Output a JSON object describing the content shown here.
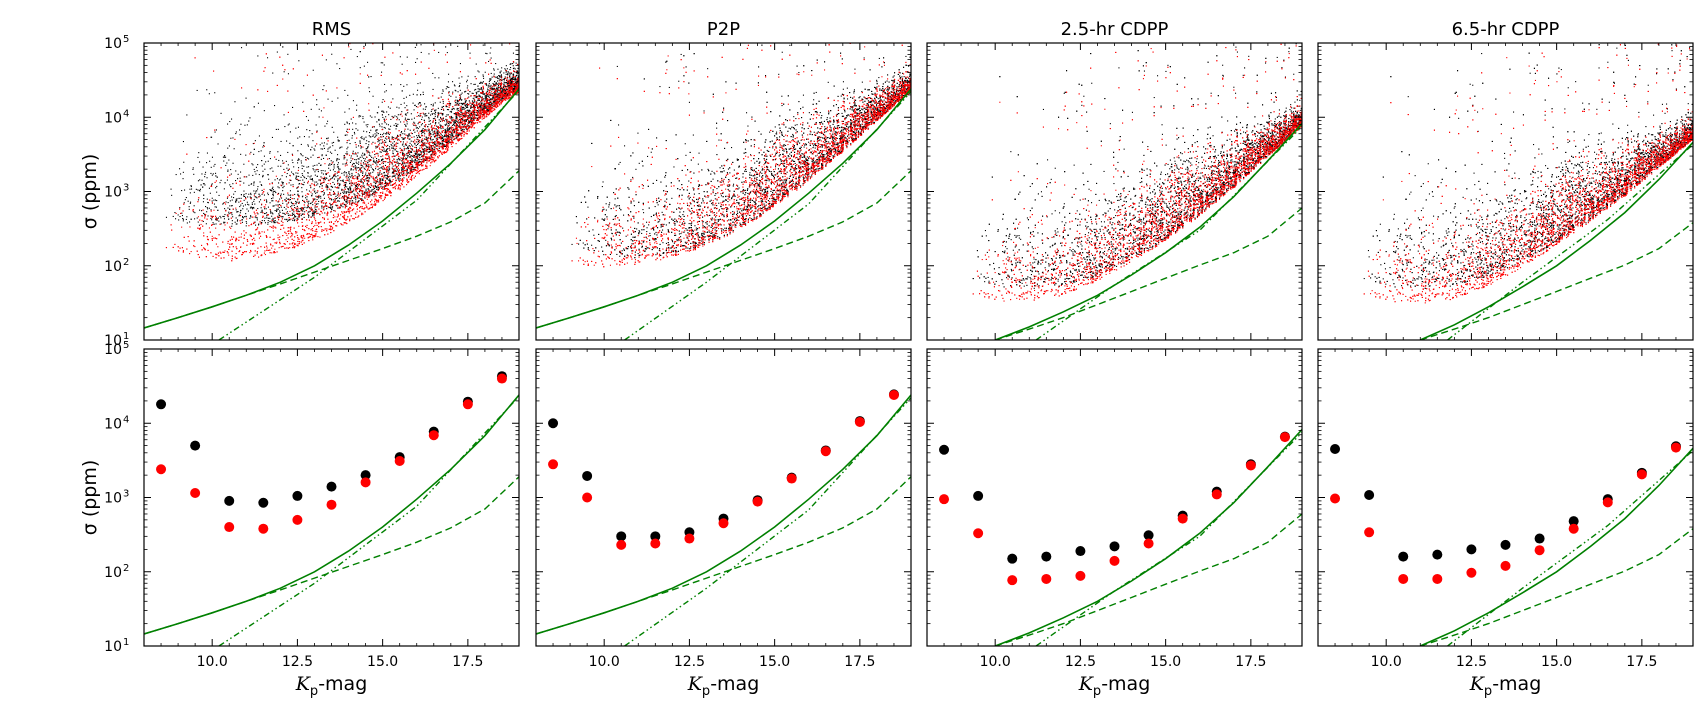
{
  "chart_data": {
    "type": "scatter",
    "layout": "2 rows x 4 columns, shared x axis",
    "panel_titles": [
      "RMS",
      "P2P",
      "2.5-hr CDPP",
      "6.5-hr CDPP"
    ],
    "xlabel": "Kp-mag",
    "xlabel_main": "K",
    "xlabel_sub": "p",
    "xlabel_suffix": "-mag",
    "ylabel": "σ (ppm)",
    "yscale": "log",
    "xlim": [
      8.0,
      19.0
    ],
    "ylim": [
      10,
      100000
    ],
    "x_ticks": [
      "10.0",
      "12.5",
      "15.0",
      "17.5"
    ],
    "x_tick_values": [
      10.0,
      12.5,
      15.0,
      17.5
    ],
    "y_tick_base": "10",
    "y_tick_exponents": [
      "1",
      "2",
      "3",
      "4",
      "5"
    ],
    "y_tick_values": [
      10,
      100,
      1000,
      10000,
      100000
    ],
    "colors": {
      "black_series": "#000000",
      "red_series": "#ff0000",
      "noise_model": "#008000"
    },
    "noise_model": [
      {
        "solid_total": [
          [
            8.0,
            14.5
          ],
          [
            9.0,
            20
          ],
          [
            10.0,
            28
          ],
          [
            11.0,
            40
          ],
          [
            12.0,
            60
          ],
          [
            13.0,
            100
          ],
          [
            14.0,
            190
          ],
          [
            15.0,
            400
          ],
          [
            16.0,
            950
          ],
          [
            17.0,
            2400
          ],
          [
            18.0,
            6800
          ],
          [
            19.0,
            24000
          ]
        ],
        "dashed": [
          [
            8.0,
            14.5
          ],
          [
            9.0,
            20
          ],
          [
            10.0,
            28
          ],
          [
            11.0,
            40
          ],
          [
            12.0,
            57
          ],
          [
            13.0,
            82
          ],
          [
            14.0,
            118
          ],
          [
            15.0,
            170
          ],
          [
            16.0,
            250
          ],
          [
            17.0,
            390
          ],
          [
            18.0,
            700
          ],
          [
            19.0,
            1900
          ]
        ],
        "dashdot": [
          [
            10.2,
            10
          ],
          [
            13.0,
            70
          ],
          [
            16.0,
            760
          ],
          [
            19.0,
            23000
          ]
        ]
      },
      {
        "solid_total": [
          [
            8.0,
            14.5
          ],
          [
            9.0,
            20
          ],
          [
            10.0,
            28
          ],
          [
            11.0,
            40
          ],
          [
            12.0,
            60
          ],
          [
            13.0,
            100
          ],
          [
            14.0,
            190
          ],
          [
            15.0,
            400
          ],
          [
            16.0,
            950
          ],
          [
            17.0,
            2400
          ],
          [
            18.0,
            6800
          ],
          [
            19.0,
            24000
          ]
        ],
        "dashed": [
          [
            8.0,
            14.5
          ],
          [
            9.0,
            20
          ],
          [
            10.0,
            28
          ],
          [
            11.0,
            40
          ],
          [
            12.0,
            57
          ],
          [
            13.0,
            82
          ],
          [
            14.0,
            118
          ],
          [
            15.0,
            170
          ],
          [
            16.0,
            250
          ],
          [
            17.0,
            390
          ],
          [
            18.0,
            700
          ],
          [
            19.0,
            1900
          ]
        ],
        "dashdot": [
          [
            10.6,
            10
          ],
          [
            13.0,
            60
          ],
          [
            16.0,
            680
          ],
          [
            19.0,
            22000
          ]
        ]
      },
      {
        "solid_total": [
          [
            10.0,
            10
          ],
          [
            11.0,
            15
          ],
          [
            12.0,
            24
          ],
          [
            13.0,
            40
          ],
          [
            14.0,
            75
          ],
          [
            15.0,
            150
          ],
          [
            16.0,
            330
          ],
          [
            17.0,
            850
          ],
          [
            18.0,
            2600
          ],
          [
            19.0,
            8200
          ]
        ],
        "dashed": [
          [
            10.0,
            10
          ],
          [
            11.0,
            14
          ],
          [
            12.0,
            20
          ],
          [
            13.0,
            30
          ],
          [
            14.0,
            45
          ],
          [
            15.0,
            68
          ],
          [
            16.0,
            102
          ],
          [
            17.0,
            150
          ],
          [
            18.0,
            250
          ],
          [
            19.0,
            600
          ]
        ],
        "dashdot": [
          [
            11.2,
            10
          ],
          [
            13.5,
            55
          ],
          [
            16.0,
            300
          ],
          [
            19.0,
            7500
          ]
        ]
      },
      {
        "solid_total": [
          [
            11.0,
            10
          ],
          [
            12.0,
            16
          ],
          [
            13.0,
            28
          ],
          [
            14.0,
            52
          ],
          [
            15.0,
            100
          ],
          [
            16.0,
            220
          ],
          [
            17.0,
            520
          ],
          [
            18.0,
            1450
          ],
          [
            19.0,
            4600
          ]
        ],
        "dashed": [
          [
            11.0,
            10
          ],
          [
            12.0,
            14
          ],
          [
            13.0,
            20
          ],
          [
            14.0,
            30
          ],
          [
            15.0,
            45
          ],
          [
            16.0,
            68
          ],
          [
            17.0,
            102
          ],
          [
            18.0,
            170
          ],
          [
            19.0,
            380
          ]
        ],
        "dashdot": [
          [
            11.8,
            10
          ],
          [
            14.0,
            60
          ],
          [
            16.5,
            420
          ],
          [
            19.0,
            4300
          ]
        ]
      }
    ],
    "scatter_panels_description": [
      {
        "black_lower_envelope": [
          [
            8.5,
            500
          ],
          [
            9.5,
            400
          ],
          [
            10.5,
            380
          ],
          [
            11.5,
            400
          ],
          [
            12.5,
            450
          ],
          [
            13.5,
            600
          ],
          [
            14.5,
            900
          ],
          [
            15.5,
            1600
          ],
          [
            16.5,
            3500
          ],
          [
            17.5,
            8000
          ],
          [
            18.5,
            20000
          ],
          [
            19.0,
            28000
          ]
        ],
        "red_lower_envelope": [
          [
            8.5,
            200
          ],
          [
            9.5,
            150
          ],
          [
            10.5,
            130
          ],
          [
            11.5,
            150
          ],
          [
            12.5,
            200
          ],
          [
            13.5,
            320
          ],
          [
            14.5,
            600
          ],
          [
            15.5,
            1200
          ],
          [
            16.5,
            2800
          ],
          [
            17.5,
            7000
          ],
          [
            18.5,
            18000
          ],
          [
            19.0,
            25000
          ]
        ],
        "x_start": 8.6
      },
      {
        "black_lower_envelope": [
          [
            8.5,
            250
          ],
          [
            9.5,
            180
          ],
          [
            10.5,
            140
          ],
          [
            11.5,
            150
          ],
          [
            12.5,
            180
          ],
          [
            13.5,
            280
          ],
          [
            14.5,
            520
          ],
          [
            15.5,
            1100
          ],
          [
            16.5,
            2600
          ],
          [
            17.5,
            6500
          ],
          [
            18.5,
            17000
          ],
          [
            19.0,
            26000
          ]
        ],
        "red_lower_envelope": [
          [
            8.5,
            150
          ],
          [
            9.5,
            110
          ],
          [
            10.5,
            110
          ],
          [
            11.5,
            130
          ],
          [
            12.5,
            170
          ],
          [
            13.5,
            270
          ],
          [
            14.5,
            500
          ],
          [
            15.5,
            1050
          ],
          [
            16.5,
            2500
          ],
          [
            17.5,
            6300
          ],
          [
            18.5,
            16500
          ],
          [
            19.0,
            25000
          ]
        ],
        "x_start": 9.0
      },
      {
        "black_lower_envelope": [
          [
            9.0,
            80
          ],
          [
            10.0,
            60
          ],
          [
            11.0,
            55
          ],
          [
            12.0,
            60
          ],
          [
            13.0,
            80
          ],
          [
            14.0,
            140
          ],
          [
            15.0,
            260
          ],
          [
            16.0,
            560
          ],
          [
            17.0,
            1350
          ],
          [
            18.0,
            3500
          ],
          [
            19.0,
            9000
          ]
        ],
        "red_lower_envelope": [
          [
            9.0,
            50
          ],
          [
            10.0,
            38
          ],
          [
            11.0,
            38
          ],
          [
            12.0,
            45
          ],
          [
            13.0,
            70
          ],
          [
            14.0,
            130
          ],
          [
            15.0,
            250
          ],
          [
            16.0,
            540
          ],
          [
            17.0,
            1300
          ],
          [
            18.0,
            3400
          ],
          [
            19.0,
            8800
          ]
        ],
        "x_start": 9.3
      },
      {
        "black_lower_envelope": [
          [
            9.0,
            80
          ],
          [
            10.0,
            60
          ],
          [
            11.0,
            55
          ],
          [
            12.0,
            60
          ],
          [
            13.0,
            80
          ],
          [
            14.0,
            130
          ],
          [
            15.0,
            240
          ],
          [
            16.0,
            480
          ],
          [
            17.0,
            1050
          ],
          [
            18.0,
            2500
          ],
          [
            19.0,
            6000
          ]
        ],
        "red_lower_envelope": [
          [
            9.0,
            50
          ],
          [
            10.0,
            38
          ],
          [
            11.0,
            35
          ],
          [
            12.0,
            40
          ],
          [
            13.0,
            60
          ],
          [
            14.0,
            110
          ],
          [
            15.0,
            220
          ],
          [
            16.0,
            460
          ],
          [
            17.0,
            1000
          ],
          [
            18.0,
            2400
          ],
          [
            19.0,
            5800
          ]
        ],
        "x_start": 9.3
      }
    ],
    "binned_medians": {
      "x": [
        8.5,
        9.5,
        10.5,
        11.5,
        12.5,
        13.5,
        14.5,
        15.5,
        16.5,
        17.5,
        18.5
      ],
      "panels": [
        {
          "title": "RMS",
          "black": [
            18000,
            5000,
            900,
            850,
            1050,
            1400,
            2000,
            3500,
            7700,
            19500,
            43000
          ],
          "red": [
            2400,
            1150,
            400,
            380,
            500,
            800,
            1600,
            3100,
            6900,
            18000,
            40000
          ]
        },
        {
          "title": "P2P",
          "black": [
            10000,
            1950,
            300,
            300,
            340,
            520,
            920,
            1850,
            4300,
            10700,
            24500
          ],
          "red": [
            2800,
            1000,
            230,
            240,
            280,
            450,
            880,
            1800,
            4200,
            10400,
            24000
          ]
        },
        {
          "title": "2.5-hr CDPP",
          "black": [
            4400,
            1050,
            150,
            160,
            190,
            220,
            310,
            570,
            1200,
            2800,
            6600
          ],
          "red": [
            950,
            330,
            77,
            80,
            88,
            140,
            240,
            520,
            1100,
            2700,
            6500
          ]
        },
        {
          "title": "6.5-hr CDPP",
          "black": [
            4500,
            1080,
            160,
            170,
            200,
            230,
            280,
            480,
            950,
            2150,
            4900
          ],
          "red": [
            970,
            340,
            80,
            80,
            97,
            120,
            195,
            380,
            860,
            2050,
            4700
          ]
        }
      ]
    }
  }
}
